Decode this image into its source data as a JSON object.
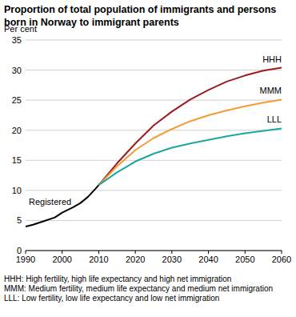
{
  "chart_data": {
    "type": "line",
    "title": "Proportion of total population of immigrants and persons born in Norway to immigrant parents",
    "y_label": "Per cent",
    "annotations": [
      "Registered"
    ],
    "footnotes": [
      "HHH: High fertility, high life expectancy and high net immigration",
      "MMM: Medium fertility, medium life expectancy and medium net immigration",
      "LLL: Low fertility, low life expectancy and low net immigration"
    ],
    "x": [
      1990,
      1992,
      1995,
      1998,
      2000,
      2003,
      2005,
      2007,
      2009,
      2010,
      2015,
      2020,
      2025,
      2030,
      2035,
      2040,
      2045,
      2050,
      2055,
      2060
    ],
    "series": [
      {
        "name": "Registered",
        "color": "#000000",
        "values": [
          4.0,
          4.3,
          4.9,
          5.5,
          6.3,
          7.2,
          7.9,
          8.9,
          10.2,
          10.9,
          null,
          null,
          null,
          null,
          null,
          null,
          null,
          null,
          null,
          null
        ]
      },
      {
        "name": "HHH",
        "color": "#9b1c20",
        "values": [
          null,
          null,
          null,
          null,
          null,
          null,
          null,
          null,
          null,
          10.9,
          14.5,
          17.8,
          20.8,
          23.1,
          25.1,
          26.7,
          28.1,
          29.1,
          29.9,
          30.4
        ]
      },
      {
        "name": "MMM",
        "color": "#f39c34",
        "values": [
          null,
          null,
          null,
          null,
          null,
          null,
          null,
          null,
          null,
          10.9,
          14.0,
          16.7,
          18.7,
          20.2,
          21.5,
          22.5,
          23.3,
          24.0,
          24.6,
          25.1
        ]
      },
      {
        "name": "LLL",
        "color": "#1aa89c",
        "values": [
          null,
          null,
          null,
          null,
          null,
          null,
          null,
          null,
          null,
          10.9,
          13.0,
          14.8,
          16.1,
          17.1,
          17.8,
          18.4,
          19.0,
          19.5,
          19.9,
          20.3
        ]
      }
    ],
    "xlim": [
      1990,
      2060
    ],
    "xticks": [
      1990,
      2000,
      2010,
      2020,
      2030,
      2040,
      2050,
      2060
    ],
    "ylim": [
      0,
      35
    ],
    "yticks": [
      0,
      5,
      10,
      15,
      20,
      25,
      30,
      35
    ],
    "grid": true
  }
}
